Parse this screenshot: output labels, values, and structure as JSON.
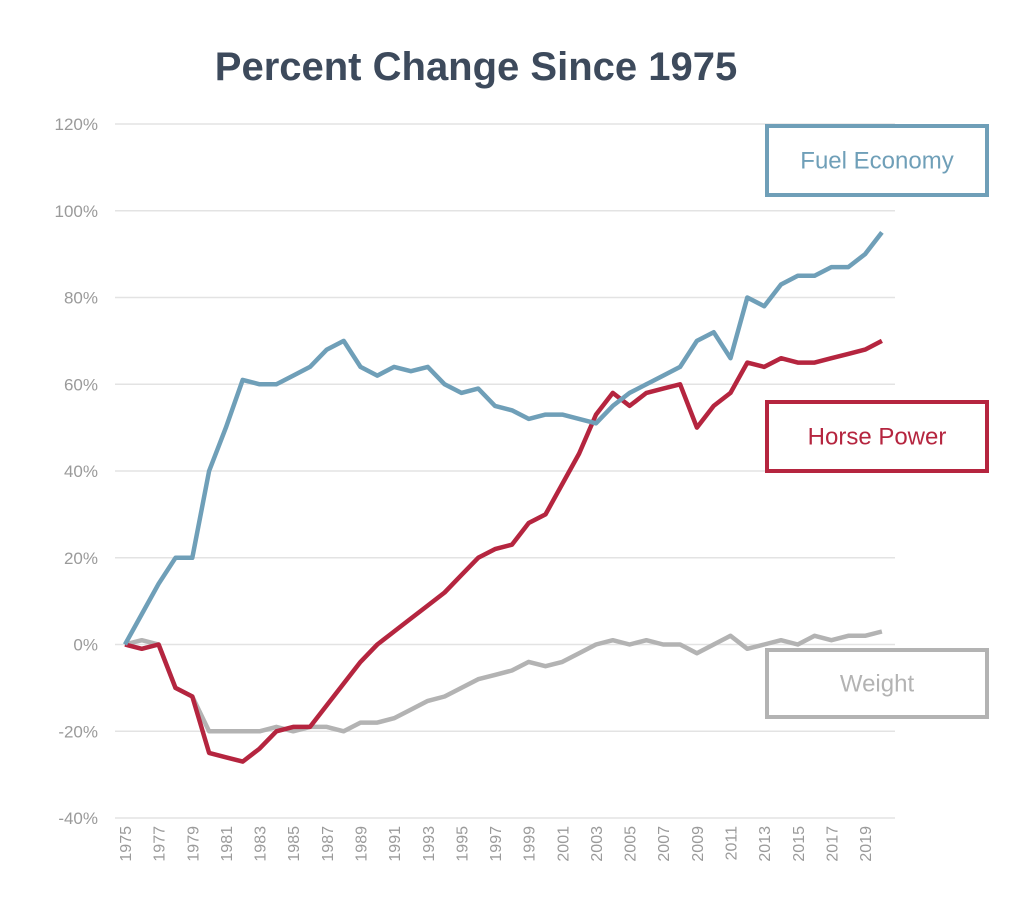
{
  "chart_data": {
    "type": "line",
    "title": "Percent Change Since 1975",
    "xlabel": "",
    "ylabel": "",
    "ylim": [
      -40,
      120
    ],
    "y_ticks": [
      "120%",
      "100%",
      "80%",
      "60%",
      "40%",
      "20%",
      "0%",
      "-20%",
      "-40%"
    ],
    "y_tick_values": [
      120,
      100,
      80,
      60,
      40,
      20,
      0,
      -20,
      -40
    ],
    "x": [
      1975,
      1976,
      1977,
      1978,
      1979,
      1980,
      1981,
      1982,
      1983,
      1984,
      1985,
      1986,
      1987,
      1988,
      1989,
      1990,
      1991,
      1992,
      1993,
      1994,
      1995,
      1996,
      1997,
      1998,
      1999,
      2000,
      2001,
      2002,
      2003,
      2004,
      2005,
      2006,
      2007,
      2008,
      2009,
      2010,
      2011,
      2012,
      2013,
      2014,
      2015,
      2016,
      2017,
      2018,
      2019,
      2020
    ],
    "x_tick_labels": [
      "1975",
      "1977",
      "1979",
      "1981",
      "1983",
      "1985",
      "1987",
      "1989",
      "1991",
      "1993",
      "1995",
      "1997",
      "1999",
      "2001",
      "2003",
      "2005",
      "2007",
      "2009",
      "2011",
      "2013",
      "2015",
      "2017",
      "2019"
    ],
    "grid": true,
    "legend": "boxed labels at right",
    "series": [
      {
        "name": "Fuel Economy",
        "color": "#6f9fb8",
        "values": [
          0,
          7,
          14,
          20,
          20,
          40,
          50,
          61,
          60,
          60,
          62,
          64,
          68,
          70,
          64,
          62,
          64,
          63,
          64,
          60,
          58,
          59,
          55,
          54,
          52,
          53,
          53,
          52,
          51,
          55,
          58,
          60,
          62,
          64,
          70,
          72,
          66,
          80,
          78,
          83,
          85,
          85,
          87,
          87,
          90,
          95
        ]
      },
      {
        "name": "Horse Power",
        "color": "#b5253f",
        "values": [
          0,
          -1,
          0,
          -10,
          -12,
          -25,
          -26,
          -27,
          -24,
          -20,
          -19,
          -19,
          -14,
          -9,
          -4,
          0,
          3,
          6,
          9,
          12,
          16,
          20,
          22,
          23,
          28,
          30,
          37,
          44,
          53,
          58,
          55,
          58,
          59,
          60,
          50,
          55,
          58,
          65,
          64,
          66,
          65,
          65,
          66,
          67,
          68,
          70
        ]
      },
      {
        "name": "Weight",
        "color": "#b3b3b3",
        "values": [
          0,
          1,
          0,
          -10,
          -12,
          -20,
          -20,
          -20,
          -20,
          -19,
          -20,
          -19,
          -19,
          -20,
          -18,
          -18,
          -17,
          -15,
          -13,
          -12,
          -10,
          -8,
          -7,
          -6,
          -4,
          -5,
          -4,
          -2,
          0,
          1,
          0,
          1,
          0,
          0,
          -2,
          0,
          2,
          -1,
          0,
          1,
          0,
          2,
          1,
          2,
          2,
          3
        ]
      }
    ]
  }
}
